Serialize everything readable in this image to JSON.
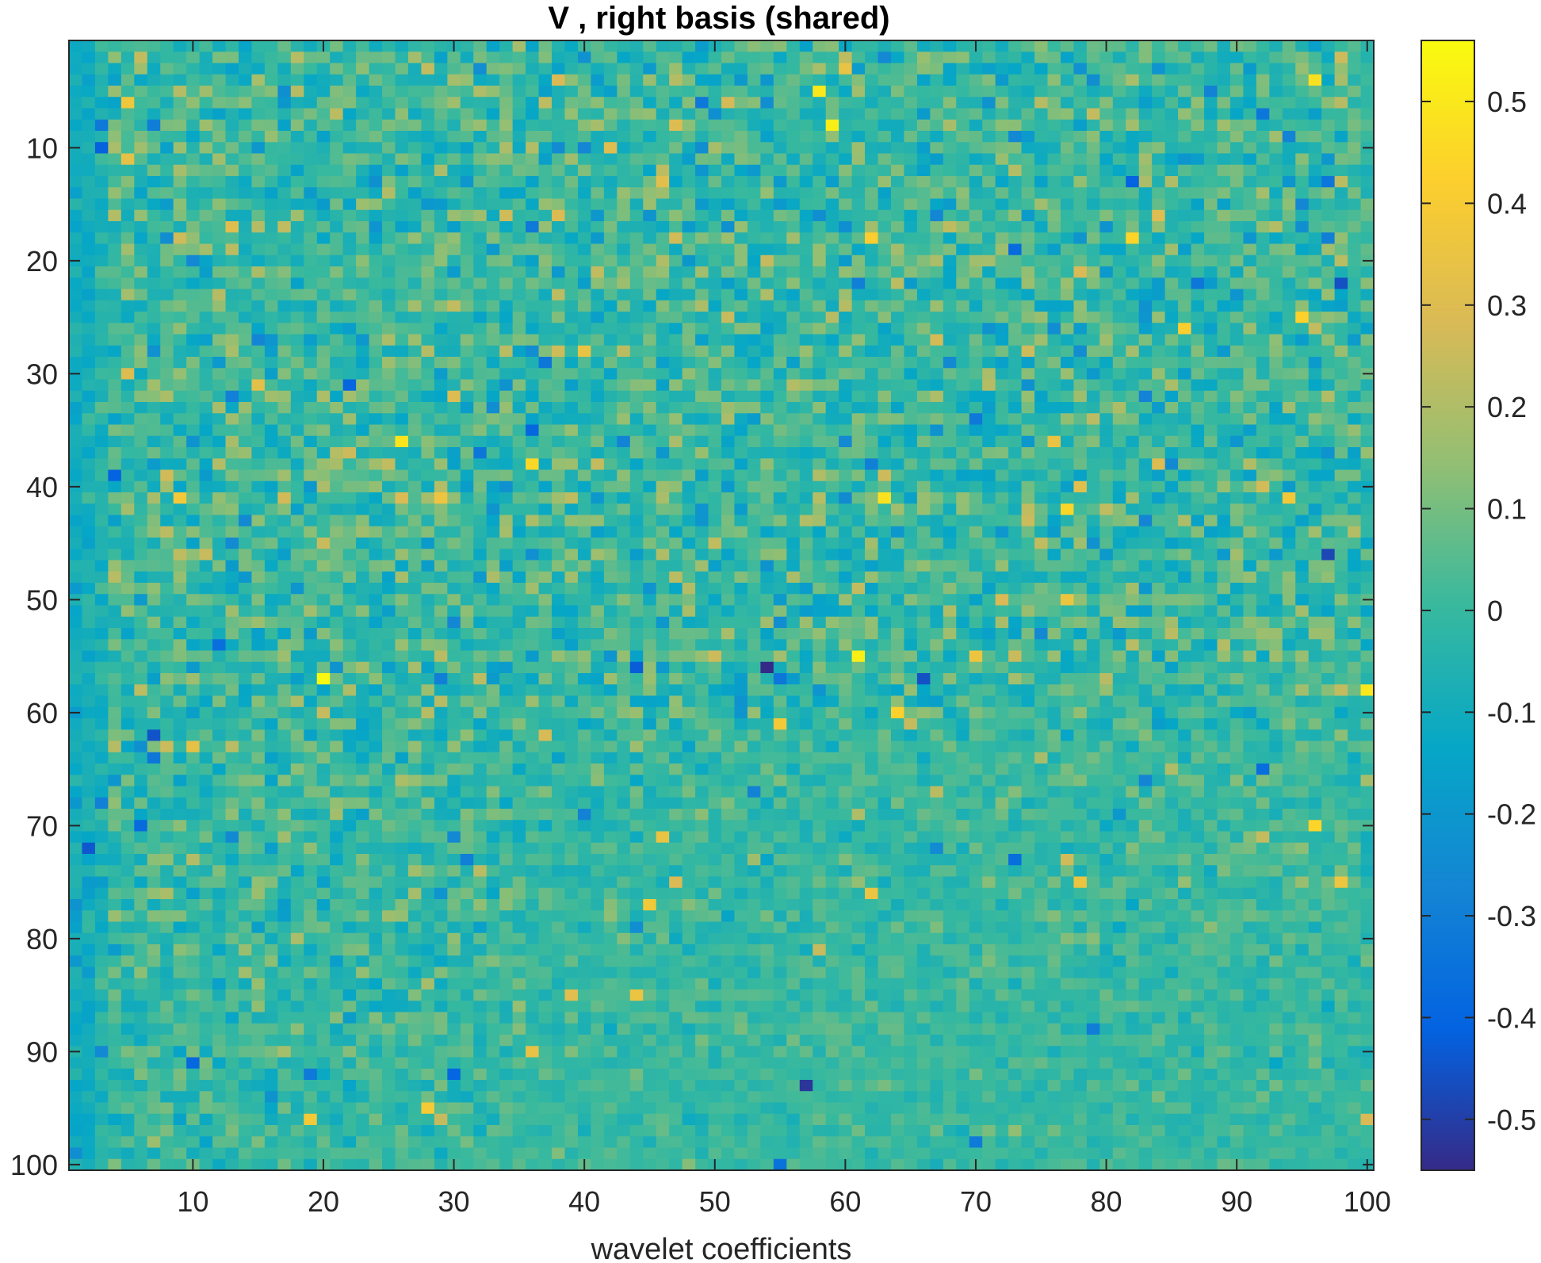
{
  "chart_data": {
    "type": "heatmap",
    "title": "V , right basis (shared)",
    "xlabel": "wavelet coefficients",
    "ylabel": "",
    "rows": 100,
    "cols": 100,
    "xlim": [
      0.5,
      100.5
    ],
    "ylim": [
      0.5,
      100.5
    ],
    "y_direction": "reverse",
    "xticks": [
      10,
      20,
      30,
      40,
      50,
      60,
      70,
      80,
      90,
      100
    ],
    "yticks": [
      10,
      20,
      30,
      40,
      50,
      60,
      70,
      80,
      90,
      100
    ],
    "colorbar": {
      "ticks": [
        0.5,
        0.4,
        0.3,
        0.2,
        0.1,
        0,
        -0.1,
        -0.2,
        -0.3,
        -0.4,
        -0.5
      ],
      "tick_labels": [
        "0.5",
        "0.4",
        "0.3",
        "0.2",
        "0.1",
        "0",
        "-0.1",
        "-0.2",
        "-0.3",
        "-0.4",
        "-0.5"
      ],
      "min": -0.55,
      "max": 0.56,
      "colormap": "parula"
    },
    "value_description": "100x100 matrix; values mostly in [-0.15, 0.15], denser variation in upper/left region, occasional outliers near ±0.5",
    "highlighted_cells": [
      {
        "row": 5,
        "col": 58,
        "value": 0.5
      },
      {
        "row": 8,
        "col": 59,
        "value": 0.52
      },
      {
        "row": 55,
        "col": 61,
        "value": 0.52
      },
      {
        "row": 57,
        "col": 20,
        "value": 0.55
      },
      {
        "row": 58,
        "col": 100,
        "value": 0.5
      },
      {
        "row": 41,
        "col": 63,
        "value": 0.48
      },
      {
        "row": 38,
        "col": 36,
        "value": 0.45
      },
      {
        "row": 56,
        "col": 54,
        "value": -0.55
      },
      {
        "row": 93,
        "col": 57,
        "value": -0.52
      },
      {
        "row": 62,
        "col": 7,
        "value": -0.45
      },
      {
        "row": 46,
        "col": 97,
        "value": -0.48
      }
    ]
  },
  "colors": {
    "axis": "#262626",
    "background": "#ffffff",
    "parula": [
      "#352a87",
      "#0363e1",
      "#1485d4",
      "#06a7c6",
      "#38b99e",
      "#92bf73",
      "#d9ba56",
      "#fcce2e",
      "#f9fb0e"
    ]
  }
}
